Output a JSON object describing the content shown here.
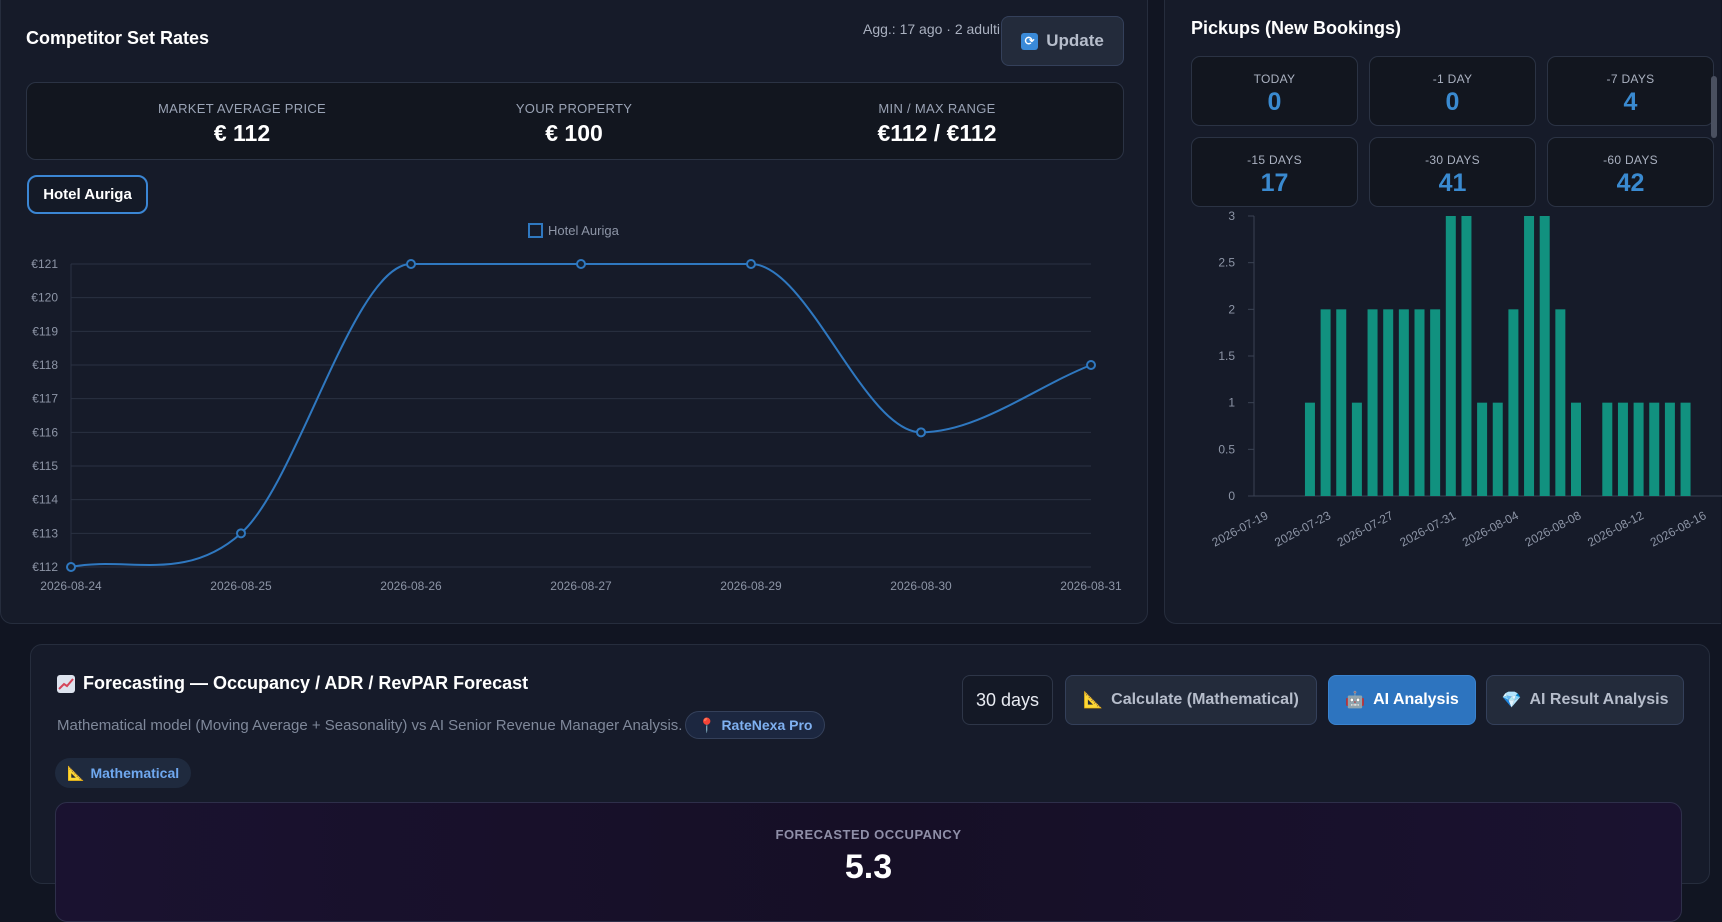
{
  "competitor": {
    "title": "Competitor Set Rates",
    "meta": "Agg.: 17 ago · 2 adulti",
    "update_label": "Update",
    "update_icon": "refresh-icon",
    "stats": [
      {
        "label": "MARKET AVERAGE PRICE",
        "value": "€ 112"
      },
      {
        "label": "YOUR PROPERTY",
        "value": "€ 100"
      },
      {
        "label": "MIN / MAX RANGE",
        "value": "€112 / €112"
      }
    ],
    "hotel_tab": "Hotel Auriga"
  },
  "pickups": {
    "title": "Pickups (New Bookings)",
    "cards": [
      {
        "label": "TODAY",
        "value": "0"
      },
      {
        "label": "-1 DAY",
        "value": "0"
      },
      {
        "label": "-7 DAYS",
        "value": "4"
      },
      {
        "label": "-15 DAYS",
        "value": "17"
      },
      {
        "label": "-30 DAYS",
        "value": "41"
      },
      {
        "label": "-60 DAYS",
        "value": "42"
      }
    ]
  },
  "forecast": {
    "title": "Forecasting — Occupancy / ADR / RevPAR Forecast",
    "subtitle": "Mathematical model (Moving Average + Seasonality) vs AI Senior Revenue Manager Analysis.",
    "badge": "RateNexa Pro",
    "mode_badge": "Mathematical",
    "days_label": "30 days",
    "calc_label": "Calculate (Mathematical)",
    "ai_label": "AI Analysis",
    "ai_result_label": "AI Result Analysis",
    "occupancy_label": "FORECASTED OCCUPANCY",
    "occupancy_value": "5.3"
  },
  "colors": {
    "accent_blue": "#2d74bf",
    "line_blue": "#2f78c0",
    "bar_teal": "#11917f"
  },
  "chart_data": [
    {
      "type": "line",
      "legend": [
        "Hotel Auriga"
      ],
      "legend_position": "top-center",
      "x": [
        "2026-08-24",
        "2026-08-25",
        "2026-08-26",
        "2026-08-27",
        "2026-08-29",
        "2026-08-30",
        "2026-08-31"
      ],
      "series": [
        {
          "name": "Hotel Auriga",
          "values": [
            112,
            113,
            121,
            121,
            121,
            116,
            118
          ]
        }
      ],
      "y_ticks": [
        "€112",
        "€113",
        "€114",
        "€115",
        "€116",
        "€117",
        "€118",
        "€119",
        "€120",
        "€121"
      ],
      "ylim": [
        112,
        121
      ],
      "grid": true
    },
    {
      "type": "bar",
      "x_ticks": [
        "2026-07-19",
        "2026-07-23",
        "2026-07-27",
        "2026-07-31",
        "2026-08-04",
        "2026-08-08",
        "2026-08-12",
        "2026-08-16"
      ],
      "dates": [
        "2026-07-19",
        "2026-07-20",
        "2026-07-21",
        "2026-07-22",
        "2026-07-23",
        "2026-07-24",
        "2026-07-25",
        "2026-07-26",
        "2026-07-27",
        "2026-07-28",
        "2026-07-29",
        "2026-07-30",
        "2026-07-31",
        "2026-08-01",
        "2026-08-02",
        "2026-08-03",
        "2026-08-04",
        "2026-08-05",
        "2026-08-06",
        "2026-08-07",
        "2026-08-08",
        "2026-08-09",
        "2026-08-10",
        "2026-08-11",
        "2026-08-12",
        "2026-08-13",
        "2026-08-14",
        "2026-08-15",
        "2026-08-16",
        "2026-08-17",
        "2026-08-18"
      ],
      "values": [
        0,
        0,
        0,
        1,
        2,
        2,
        1,
        2,
        2,
        2,
        2,
        2,
        3,
        3,
        1,
        1,
        2,
        3,
        3,
        2,
        1,
        0,
        1,
        1,
        1,
        1,
        1,
        1,
        0,
        0,
        0
      ],
      "y_ticks": [
        "0",
        "0.5",
        "1",
        "1.5",
        "2",
        "2.5",
        "3"
      ],
      "ylim": [
        0,
        3
      ],
      "grid": false
    }
  ]
}
